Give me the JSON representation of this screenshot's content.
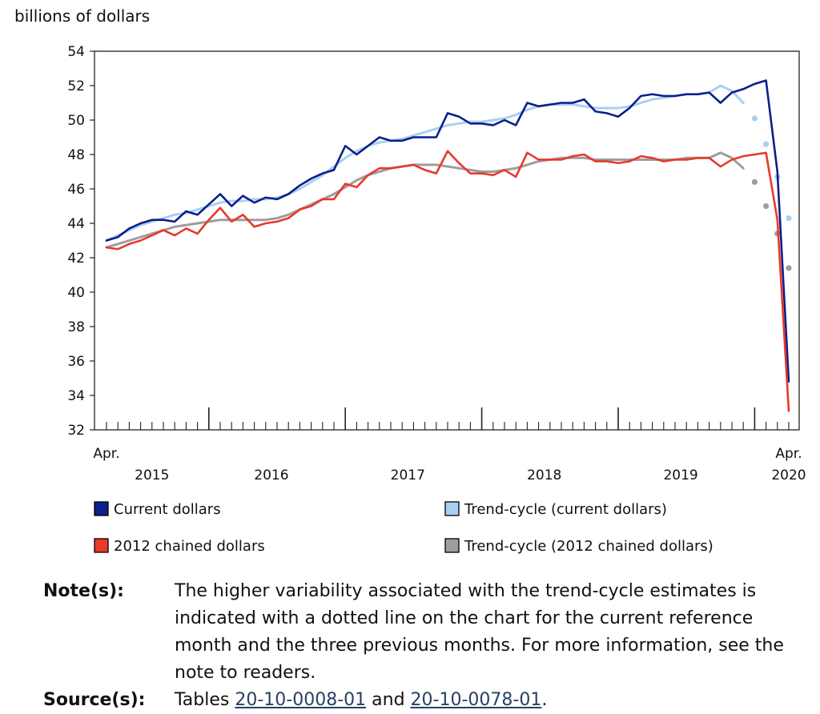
{
  "chart_data": {
    "type": "line",
    "ylabel": "billions of dollars",
    "ylim": [
      32,
      54
    ],
    "yticks": [
      "54",
      "52",
      "50",
      "48",
      "46",
      "44",
      "42",
      "40",
      "38",
      "36",
      "34",
      "32"
    ],
    "x_start": "2015-04",
    "x_end": "2020-04",
    "x_labels": {
      "first_month": "Apr.",
      "last_month": "Apr.",
      "years": [
        "2015",
        "2016",
        "2017",
        "2018",
        "2019",
        "2020"
      ]
    },
    "series": [
      {
        "name": "Current dollars",
        "color": "#0c1f8a",
        "style": "solid",
        "start": "2015-04",
        "values": [
          43.0,
          43.2,
          43.7,
          44.0,
          44.2,
          44.2,
          44.1,
          44.7,
          44.5,
          45.1,
          45.7,
          45.0,
          45.6,
          45.2,
          45.5,
          45.4,
          45.7,
          46.2,
          46.6,
          46.9,
          47.1,
          48.5,
          48.0,
          48.5,
          49.0,
          48.8,
          48.8,
          49.0,
          49.0,
          49.0,
          50.4,
          50.2,
          49.8,
          49.8,
          49.7,
          50.0,
          49.7,
          51.0,
          50.8,
          50.9,
          51.0,
          51.0,
          51.2,
          50.5,
          50.4,
          50.2,
          50.7,
          51.4,
          51.5,
          51.4,
          51.4,
          51.5,
          51.5,
          51.6,
          51.0,
          51.6,
          51.8,
          52.1,
          52.3,
          47.0,
          34.8
        ]
      },
      {
        "name": "2012 chained dollars",
        "color": "#e8392b",
        "style": "solid",
        "start": "2015-04",
        "values": [
          42.6,
          42.5,
          42.8,
          43.0,
          43.3,
          43.6,
          43.3,
          43.7,
          43.4,
          44.2,
          44.9,
          44.1,
          44.5,
          43.8,
          44.0,
          44.1,
          44.3,
          44.8,
          45.0,
          45.4,
          45.4,
          46.3,
          46.1,
          46.8,
          47.2,
          47.2,
          47.3,
          47.4,
          47.1,
          46.9,
          48.2,
          47.5,
          46.9,
          46.9,
          46.8,
          47.1,
          46.7,
          48.1,
          47.7,
          47.7,
          47.7,
          47.9,
          48.0,
          47.6,
          47.6,
          47.5,
          47.6,
          47.9,
          47.8,
          47.6,
          47.7,
          47.7,
          47.8,
          47.8,
          47.3,
          47.7,
          47.9,
          48.0,
          48.1,
          44.2,
          33.1
        ]
      },
      {
        "name": "Trend-cycle (current dollars)",
        "color": "#a9cff3",
        "style": "solid",
        "start": "2015-04",
        "values": [
          43.0,
          43.3,
          43.6,
          43.9,
          44.1,
          44.3,
          44.5,
          44.6,
          44.8,
          45.0,
          45.2,
          45.3,
          45.3,
          45.4,
          45.4,
          45.5,
          45.7,
          46.0,
          46.4,
          46.8,
          47.3,
          47.8,
          48.2,
          48.5,
          48.7,
          48.8,
          48.9,
          49.1,
          49.3,
          49.5,
          49.7,
          49.8,
          49.9,
          49.9,
          50.0,
          50.1,
          50.3,
          50.6,
          50.8,
          50.9,
          50.9,
          50.9,
          50.8,
          50.7,
          50.7,
          50.7,
          50.8,
          51.0,
          51.2,
          51.3,
          51.4,
          51.5,
          51.5,
          51.6,
          52.0,
          51.7,
          51.0
        ],
        "dotted": {
          "start": "2020-01",
          "values": [
            50.1,
            48.6,
            46.7,
            44.3
          ]
        }
      },
      {
        "name": "Trend-cycle (2012 chained dollars)",
        "color": "#9d9d9d",
        "style": "solid",
        "start": "2015-04",
        "values": [
          42.6,
          42.8,
          43.0,
          43.2,
          43.4,
          43.6,
          43.8,
          43.9,
          44.0,
          44.1,
          44.2,
          44.2,
          44.2,
          44.2,
          44.2,
          44.3,
          44.5,
          44.8,
          45.1,
          45.4,
          45.7,
          46.1,
          46.5,
          46.8,
          47.0,
          47.2,
          47.3,
          47.4,
          47.4,
          47.4,
          47.3,
          47.2,
          47.1,
          47.0,
          47.0,
          47.1,
          47.2,
          47.4,
          47.6,
          47.7,
          47.8,
          47.8,
          47.8,
          47.7,
          47.7,
          47.7,
          47.7,
          47.7,
          47.7,
          47.7,
          47.7,
          47.8,
          47.8,
          47.8,
          48.1,
          47.8,
          47.2
        ],
        "dotted": {
          "start": "2020-01",
          "values": [
            46.4,
            45.0,
            43.4,
            41.4
          ]
        }
      }
    ],
    "legend": {
      "placement": "bottom",
      "items": [
        {
          "label": "Current dollars",
          "color": "#0c1f8a"
        },
        {
          "label": "Trend-cycle (current dollars)",
          "color": "#a9cff3"
        },
        {
          "label": "2012 chained dollars",
          "color": "#e8392b"
        },
        {
          "label": "Trend-cycle (2012 chained dollars)",
          "color": "#9d9d9d"
        }
      ]
    },
    "grid": false
  },
  "notes": {
    "note_label": "Note(s):",
    "note_text": "The higher variability associated with the trend-cycle estimates is indicated with a dotted line on the chart for the current reference month and the three previous months. For more information, see the note to readers.",
    "source_label": "Source(s):",
    "source_prefix": "Tables",
    "source_link1": "20-10-0008-01",
    "source_conj": "and",
    "source_link2": "20-10-0078-01",
    "source_suffix": "."
  }
}
